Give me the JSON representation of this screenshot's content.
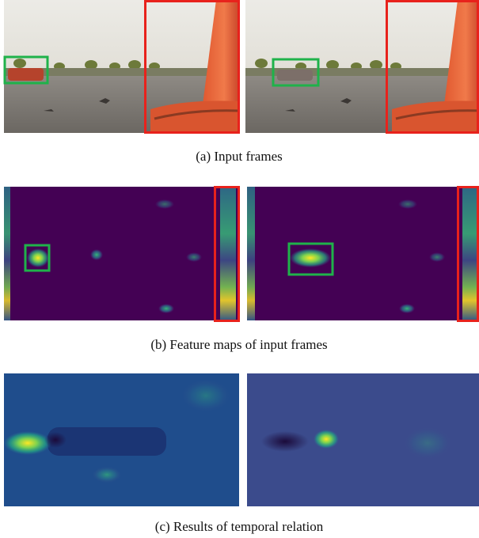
{
  "panels": [
    {
      "caption": "(a)  Input frames"
    },
    {
      "caption": "(b)  Feature maps of input frames"
    },
    {
      "caption": "(c)  Results of temporal relation"
    }
  ]
}
